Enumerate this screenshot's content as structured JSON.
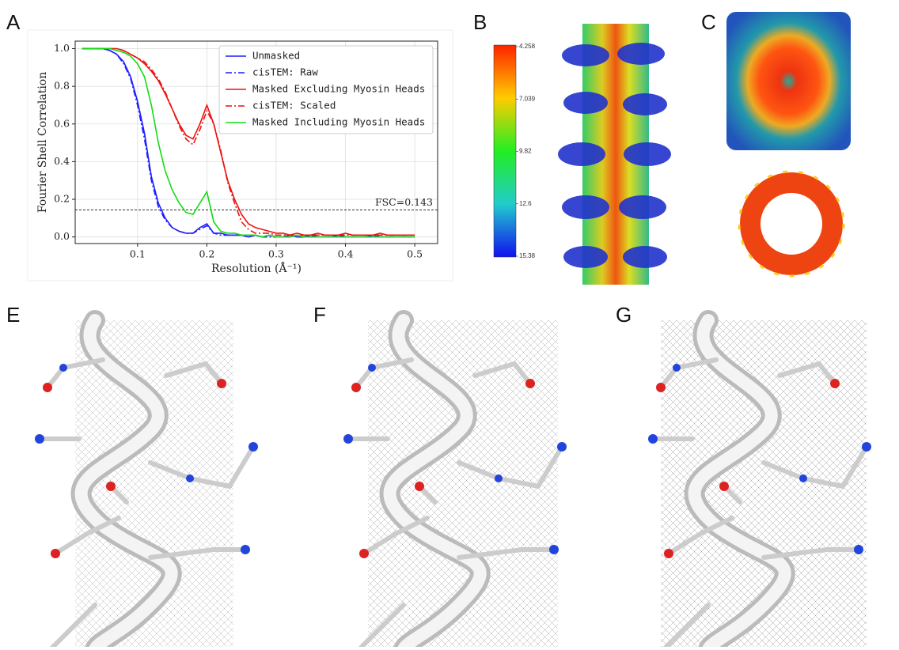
{
  "panel_labels": [
    "A",
    "B",
    "C",
    "E",
    "F",
    "G"
  ],
  "colorbar": {
    "ticks": [
      4.258,
      7.039,
      9.82,
      12.6,
      15.38
    ]
  },
  "chart_data": {
    "type": "line",
    "xlabel": "Resolution (Å⁻¹)",
    "ylabel": "Fourier Shell Correlation",
    "x": [
      0.02,
      0.03,
      0.04,
      0.05,
      0.06,
      0.07,
      0.08,
      0.09,
      0.1,
      0.11,
      0.12,
      0.13,
      0.14,
      0.15,
      0.16,
      0.17,
      0.18,
      0.19,
      0.2,
      0.21,
      0.22,
      0.23,
      0.24,
      0.25,
      0.26,
      0.27,
      0.28,
      0.29,
      0.3,
      0.31,
      0.32,
      0.33,
      0.34,
      0.35,
      0.36,
      0.37,
      0.38,
      0.39,
      0.4,
      0.41,
      0.42,
      0.43,
      0.44,
      0.45,
      0.46,
      0.47,
      0.48,
      0.49,
      0.5
    ],
    "xlim": [
      0.01,
      0.533
    ],
    "ylim": [
      -0.035,
      1.04
    ],
    "xticks": [
      0.1,
      0.2,
      0.3,
      0.4,
      0.5
    ],
    "yticks": [
      {
        "value": 0,
        "label": "0.0"
      },
      0.2,
      0.4,
      0.6,
      0.8,
      {
        "value": 1,
        "label": "1.0"
      }
    ],
    "grid": true,
    "legend": "upper right",
    "threshold": {
      "value": 0.143,
      "label": "FSC=0.143"
    },
    "series": [
      {
        "name": "Unmasked",
        "color": "#1f1fff",
        "linestyle": "solid",
        "values": [
          1,
          1,
          1,
          1,
          0.99,
          0.97,
          0.93,
          0.85,
          0.72,
          0.55,
          0.32,
          0.18,
          0.1,
          0.05,
          0.03,
          0.02,
          0.02,
          0.05,
          0.07,
          0.02,
          0.02,
          0.01,
          0.01,
          0.01,
          0,
          0.01,
          0,
          0.01,
          0,
          0,
          0.01,
          0,
          0,
          0.01,
          0,
          0,
          0,
          0.01,
          0,
          0,
          0,
          0,
          0.01,
          0,
          0,
          0,
          0,
          0,
          0
        ]
      },
      {
        "name": "cisTEM: Raw",
        "color": "#1f1fff",
        "linestyle": "dashdot",
        "values": [
          1,
          1,
          1,
          1,
          0.99,
          0.97,
          0.92,
          0.84,
          0.7,
          0.52,
          0.3,
          0.16,
          0.09,
          0.05,
          0.03,
          0.02,
          0.02,
          0.04,
          0.06,
          0.02,
          0.01,
          0.01,
          0.01,
          0.01,
          0,
          0.01,
          0,
          0,
          0,
          0,
          0.01,
          0,
          0,
          0,
          0,
          0,
          0,
          0.01,
          0,
          0,
          0,
          0,
          0,
          0,
          0,
          0,
          0,
          0,
          0
        ]
      },
      {
        "name": "Masked Excluding Myosin Heads",
        "color": "#ee1111",
        "linestyle": "solid",
        "values": [
          1,
          1,
          1,
          1,
          1,
          1,
          0.99,
          0.97,
          0.95,
          0.92,
          0.88,
          0.83,
          0.76,
          0.68,
          0.6,
          0.54,
          0.52,
          0.6,
          0.7,
          0.6,
          0.45,
          0.3,
          0.2,
          0.12,
          0.07,
          0.05,
          0.04,
          0.03,
          0.02,
          0.02,
          0.01,
          0.02,
          0.01,
          0.01,
          0.02,
          0.01,
          0.01,
          0.01,
          0.02,
          0.01,
          0.01,
          0.01,
          0.01,
          0.02,
          0.01,
          0.01,
          0.01,
          0.01,
          0.01
        ]
      },
      {
        "name": "cisTEM: Scaled",
        "color": "#ee1111",
        "linestyle": "dashdot",
        "values": [
          1,
          1,
          1,
          1,
          1,
          1,
          0.99,
          0.97,
          0.95,
          0.93,
          0.89,
          0.84,
          0.77,
          0.68,
          0.59,
          0.52,
          0.49,
          0.57,
          0.67,
          0.6,
          0.46,
          0.29,
          0.18,
          0.08,
          0.04,
          0.02,
          0.02,
          0.02,
          0.01,
          0.01,
          0.01,
          0.01,
          0.01,
          0.01,
          0.01,
          0.01,
          0.01,
          0.01,
          0.01,
          0.01,
          0.01,
          0.01,
          0.01,
          0.01,
          0.01,
          0.01,
          0.01,
          0.01,
          0.01
        ]
      },
      {
        "name": "Masked Including Myosin Heads",
        "color": "#11dd11",
        "linestyle": "solid",
        "values": [
          1,
          1,
          1,
          1,
          1,
          0.99,
          0.98,
          0.96,
          0.92,
          0.85,
          0.7,
          0.5,
          0.35,
          0.25,
          0.18,
          0.13,
          0.12,
          0.18,
          0.24,
          0.08,
          0.03,
          0.02,
          0.02,
          0.01,
          0.01,
          0.01,
          0,
          0.01,
          0,
          0,
          0,
          0.01,
          0,
          0,
          0,
          0,
          0,
          0,
          0,
          0,
          0,
          0,
          0,
          0,
          0,
          0,
          0,
          0,
          0
        ]
      }
    ]
  }
}
